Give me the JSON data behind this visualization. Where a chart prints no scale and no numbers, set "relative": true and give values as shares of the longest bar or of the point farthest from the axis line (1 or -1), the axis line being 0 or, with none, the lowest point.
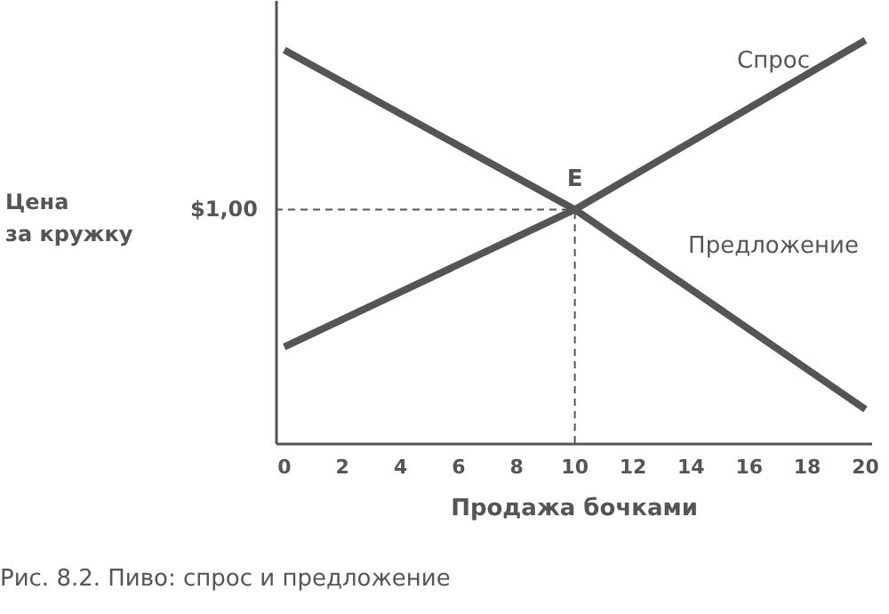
{
  "chart_data": {
    "type": "line",
    "relative": true,
    "xlabel": "Продажа бочками",
    "x": [
      0,
      10,
      20
    ],
    "xlim": [
      -0.3,
      20.2
    ],
    "xticks": [
      0,
      2,
      4,
      6,
      8,
      10,
      12,
      14,
      16,
      18,
      20
    ],
    "series": [
      {
        "name": "Спрос",
        "color": "#555555",
        "values": [
          0.239,
          0.58,
          1.0
        ]
      },
      {
        "name": "Предложение",
        "color": "#555555",
        "values": [
          0.976,
          0.58,
          0.084
        ]
      }
    ],
    "ref_lines": [
      {
        "axis": "y",
        "value": 0.58,
        "label": null,
        "line_style": "dashed",
        "color": "#555555"
      },
      {
        "axis": "x",
        "value": 10,
        "label": null,
        "line_style": "dashed",
        "color": "#555555"
      }
    ],
    "annotations": [
      {
        "text": "E",
        "x": 10,
        "y": 0.58
      },
      "Цена\nза кружку",
      "$1,00",
      "Рис. 8.2.  Пиво: спрос и предложение"
    ],
    "grid": false,
    "marker": "none",
    "line_style": "solid"
  }
}
